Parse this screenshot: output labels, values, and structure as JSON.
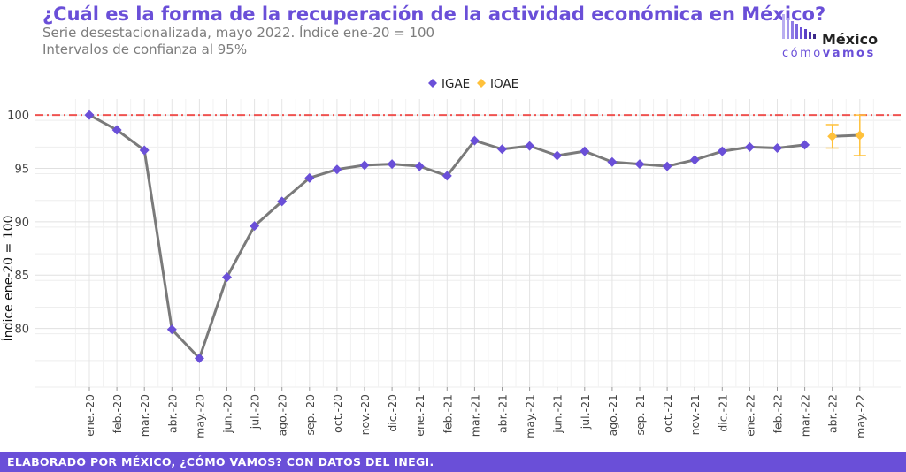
{
  "header": {
    "title": "¿Cuál es la forma de la recuperación de la actividad económica en México?",
    "subtitle_1": "Serie desestacionalizada, mayo 2022. Índice ene-20 = 100",
    "subtitle_2": "Intervalos de confianza al 95%"
  },
  "logo": {
    "name": "México",
    "tag_light": "cómo",
    "tag_bold": "vamos"
  },
  "footer": {
    "text": "ELABORADO POR MÉXICO, ¿CÓMO VAMOS? CON DATOS DEL INEGI."
  },
  "colors": {
    "igae": "#6a4fd8",
    "ioae": "#ffc13b",
    "line": "#7a7a7a",
    "reference": "#ef5350",
    "brand": "#6a4fd8"
  },
  "chart_data": {
    "type": "line",
    "ylabel": "Índice ene-20 = 100",
    "xlabel": "",
    "ylim": [
      74.5,
      101.5
    ],
    "yticks": [
      80,
      85,
      90,
      95,
      100
    ],
    "grid": true,
    "legend_position": "top-center",
    "reference_line": 100,
    "categories": [
      "ene.-20",
      "feb.-20",
      "mar.-20",
      "abr.-20",
      "may.-20",
      "jun.-20",
      "jul.-20",
      "ago.-20",
      "sep.-20",
      "oct.-20",
      "nov.-20",
      "dic.-20",
      "ene.-21",
      "feb.-21",
      "mar.-21",
      "abr.-21",
      "may.-21",
      "jun.-21",
      "jul.-21",
      "ago.-21",
      "sep.-21",
      "oct.-21",
      "nov.-21",
      "dic.-21",
      "ene.-22",
      "feb.-22",
      "mar.-22",
      "abr.-22",
      "may.-22"
    ],
    "series": [
      {
        "name": "IGAE",
        "values": [
          100.0,
          98.6,
          96.7,
          79.9,
          77.2,
          84.8,
          89.6,
          91.9,
          94.1,
          94.9,
          95.3,
          95.4,
          95.2,
          94.3,
          97.6,
          96.8,
          97.1,
          96.2,
          96.6,
          95.6,
          95.4,
          95.2,
          95.8,
          96.6,
          97.0,
          96.9,
          97.2,
          null,
          null
        ]
      },
      {
        "name": "IOAE",
        "values": [
          null,
          null,
          null,
          null,
          null,
          null,
          null,
          null,
          null,
          null,
          null,
          null,
          null,
          null,
          null,
          null,
          null,
          null,
          null,
          null,
          null,
          null,
          null,
          null,
          null,
          null,
          null,
          98.0,
          98.1
        ],
        "ci_low": [
          null,
          null,
          null,
          null,
          null,
          null,
          null,
          null,
          null,
          null,
          null,
          null,
          null,
          null,
          null,
          null,
          null,
          null,
          null,
          null,
          null,
          null,
          null,
          null,
          null,
          null,
          null,
          96.9,
          96.2
        ],
        "ci_high": [
          null,
          null,
          null,
          null,
          null,
          null,
          null,
          null,
          null,
          null,
          null,
          null,
          null,
          null,
          null,
          null,
          null,
          null,
          null,
          null,
          null,
          null,
          null,
          null,
          null,
          null,
          null,
          99.1,
          100.0
        ]
      }
    ]
  }
}
